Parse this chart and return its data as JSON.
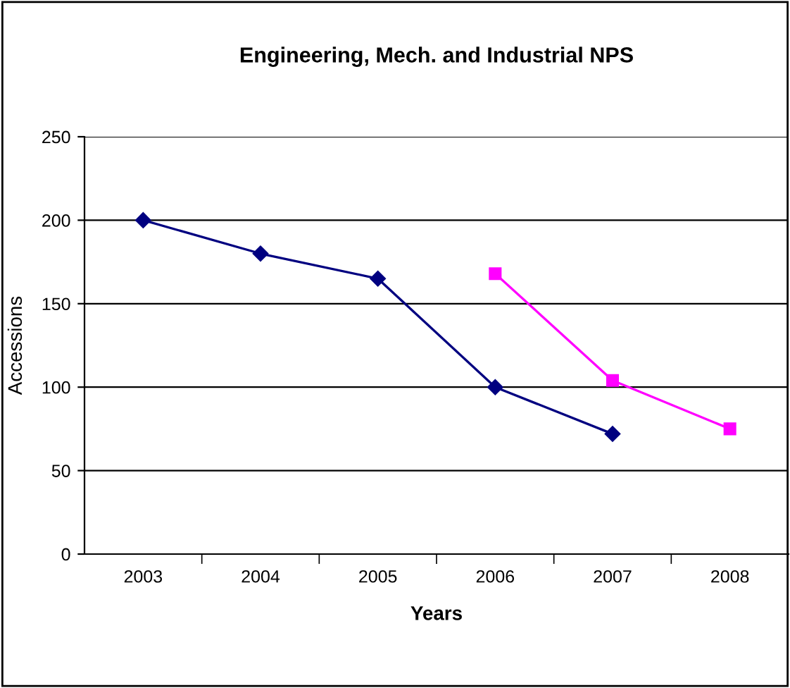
{
  "chart_data": {
    "type": "line",
    "title": "Engineering, Mech. and Industrial NPS",
    "xlabel": "Years",
    "ylabel": "Accessions",
    "categories": [
      "2003",
      "2004",
      "2005",
      "2006",
      "2007",
      "2008"
    ],
    "series": [
      {
        "color": "#000080",
        "marker": "diamond",
        "values": [
          200,
          180,
          165,
          100,
          72,
          null
        ]
      },
      {
        "color": "#ff00ff",
        "marker": "square",
        "values": [
          null,
          null,
          null,
          168,
          104,
          75
        ]
      }
    ],
    "ylim": [
      0,
      250
    ],
    "yticks": [
      0,
      50,
      100,
      150,
      200,
      250
    ],
    "grid": "y",
    "legend": false
  }
}
